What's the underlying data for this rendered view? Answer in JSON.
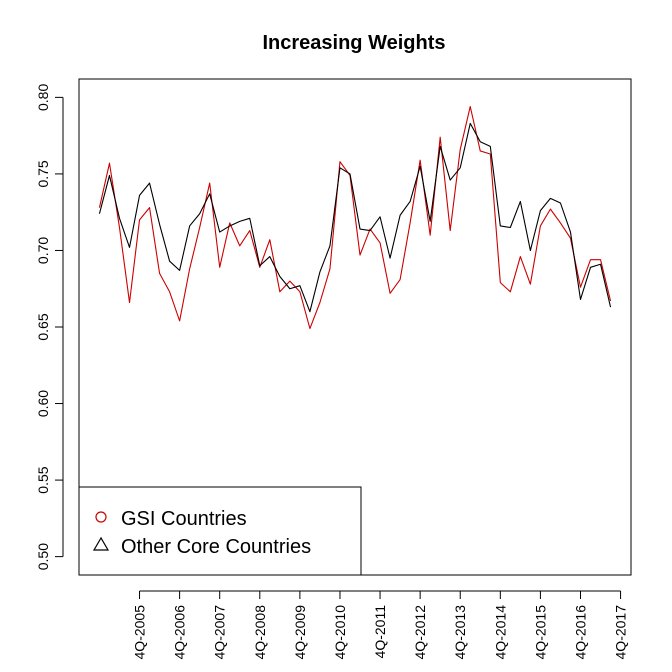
{
  "chart_data": {
    "type": "line",
    "title": "Increasing Weights",
    "xlabel": "",
    "ylabel": "",
    "ylim": [
      0.5,
      0.8
    ],
    "yticks": [
      0.5,
      0.55,
      0.6,
      0.65,
      0.7,
      0.75,
      0.8
    ],
    "ytick_labels": [
      "0.50",
      "0.55",
      "0.60",
      "0.65",
      "0.70",
      "0.75",
      "0.80"
    ],
    "xticks": [
      2005.75,
      2006.75,
      2007.75,
      2008.75,
      2009.75,
      2010.75,
      2011.75,
      2012.75,
      2013.75,
      2014.75,
      2015.75,
      2016.75,
      2017.75
    ],
    "xtick_labels": [
      "4Q-2005",
      "4Q-2006",
      "4Q-2007",
      "4Q-2008",
      "4Q-2009",
      "4Q-2010",
      "4Q-2011",
      "4Q-2012",
      "4Q-2013",
      "4Q-2014",
      "4Q-2015",
      "4Q-2016",
      "4Q-2017"
    ],
    "x_start": 2004.75,
    "x_step": 0.25,
    "series": [
      {
        "name": "GSI Countries",
        "color": "#cc0000",
        "marker": "circle",
        "values": [
          0.728,
          0.757,
          0.715,
          0.666,
          0.72,
          0.728,
          0.685,
          0.673,
          0.654,
          0.688,
          0.715,
          0.744,
          0.689,
          0.718,
          0.703,
          0.713,
          0.689,
          0.707,
          0.673,
          0.68,
          0.673,
          0.649,
          0.666,
          0.688,
          0.758,
          0.749,
          0.697,
          0.714,
          0.705,
          0.672,
          0.681,
          0.718,
          0.759,
          0.71,
          0.774,
          0.713,
          0.766,
          0.794,
          0.765,
          0.763,
          0.679,
          0.673,
          0.696,
          0.678,
          0.716,
          0.727,
          0.718,
          0.708,
          0.676,
          0.694,
          0.694,
          0.667
        ]
      },
      {
        "name": "Other Core Countries",
        "color": "#000000",
        "marker": "triangle",
        "values": [
          0.724,
          0.749,
          0.721,
          0.702,
          0.736,
          0.744,
          0.717,
          0.693,
          0.687,
          0.716,
          0.724,
          0.737,
          0.712,
          0.716,
          0.719,
          0.721,
          0.69,
          0.696,
          0.683,
          0.675,
          0.677,
          0.66,
          0.686,
          0.703,
          0.754,
          0.75,
          0.714,
          0.713,
          0.722,
          0.695,
          0.723,
          0.732,
          0.755,
          0.719,
          0.768,
          0.746,
          0.754,
          0.783,
          0.771,
          0.768,
          0.716,
          0.715,
          0.732,
          0.7,
          0.726,
          0.734,
          0.731,
          0.712,
          0.668,
          0.689,
          0.691,
          0.663
        ]
      }
    ],
    "legend_position": "bottom-left"
  }
}
